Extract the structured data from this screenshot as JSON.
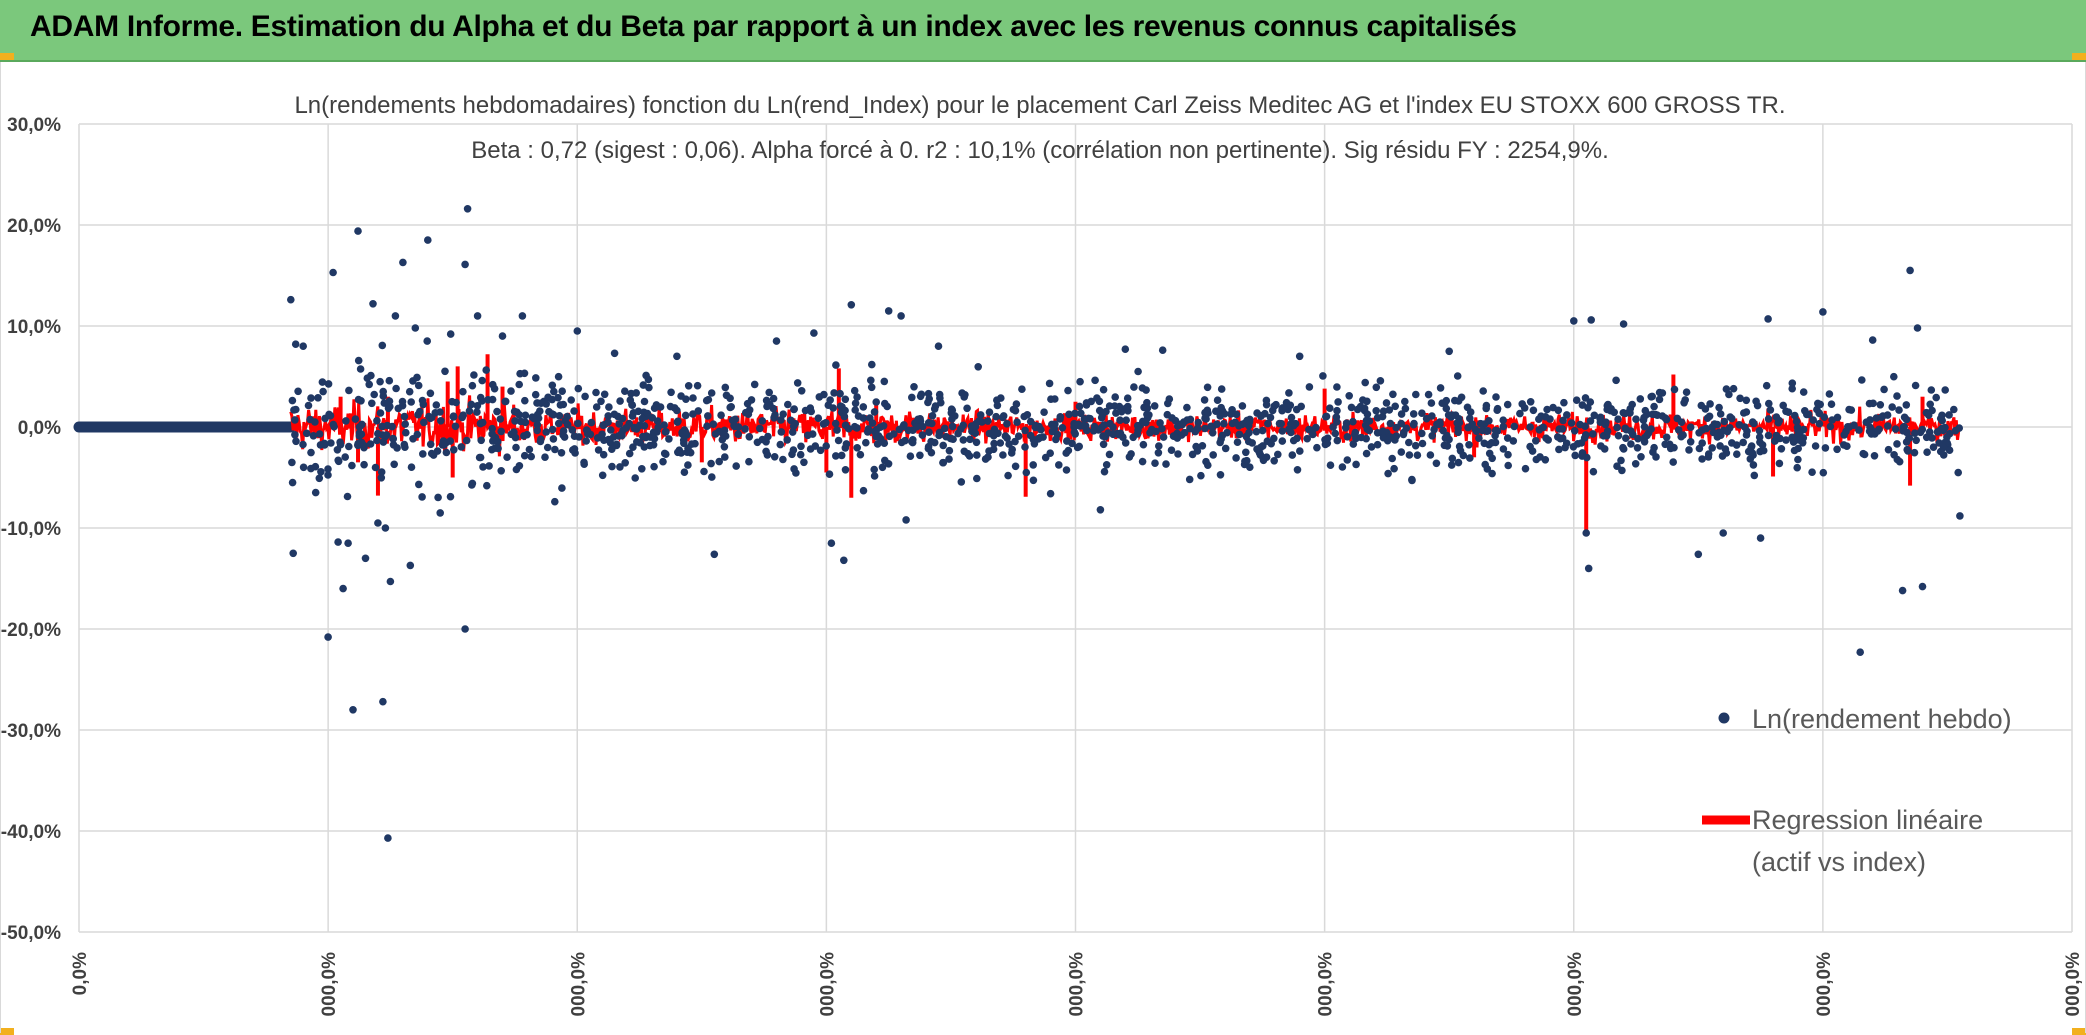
{
  "header": {
    "title": "ADAM Informe. Estimation du Alpha et du Beta par rapport à un index avec les revenus connus capitalisés"
  },
  "colors": {
    "banner": "#7bc87c",
    "points": "#203864",
    "regression": "#ff0000",
    "grid": "#d9d9d9"
  },
  "chart_data": {
    "type": "scatter",
    "title_line1": "Ln(rendements hebdomadaires) fonction du Ln(rend_Index) pour le placement Carl Zeiss Meditec AG et l'index EU STOXX 600 GROSS TR.",
    "title_line2": "Beta : 0,72 (sigest : 0,06). Alpha forcé à 0. r2 : 10,1% (corrélation non pertinente). Sig résidu FY : 2254,9%.",
    "ylim": [
      -50,
      30
    ],
    "y_ticks": [
      "30,0%",
      "20,0%",
      "10,0%",
      "0,0%",
      "-10,0%",
      "-20,0%",
      "-30,0%",
      "-40,0%",
      "-50,0%"
    ],
    "x_ticks": [
      "0,0%",
      "000,0%",
      "000,0%",
      "000,0%",
      "000,0%",
      "000,0%",
      "000,0%",
      "000,0%",
      "000,0%"
    ],
    "grid": true,
    "legend_position": "right",
    "series": [
      {
        "name": "Ln(rendement hebdo)",
        "marker": "dot"
      },
      {
        "name": "Regression linéaire (actif vs index)",
        "marker": "line"
      }
    ],
    "legend_lines": [
      "Ln(rendement hebdo)",
      "Regression linéaire",
      "(actif vs index)"
    ],
    "flat_segment": {
      "x_from": 0,
      "x_to": 0.85,
      "y": 0
    },
    "outliers": [
      [
        0.85,
        12.6
      ],
      [
        0.86,
        -12.5
      ],
      [
        0.87,
        8.2
      ],
      [
        0.9,
        8.0
      ],
      [
        0.95,
        -6.5
      ],
      [
        0.98,
        3.5
      ],
      [
        1.0,
        -20.8
      ],
      [
        1.02,
        15.3
      ],
      [
        1.04,
        -11.4
      ],
      [
        1.06,
        -16.0
      ],
      [
        1.08,
        -11.5
      ],
      [
        1.1,
        -28.0
      ],
      [
        1.12,
        19.4
      ],
      [
        1.15,
        -13.0
      ],
      [
        1.18,
        12.2
      ],
      [
        1.2,
        -9.5
      ],
      [
        1.22,
        -27.2
      ],
      [
        1.23,
        -10.0
      ],
      [
        1.24,
        -40.7
      ],
      [
        1.25,
        -15.3
      ],
      [
        1.27,
        11.0
      ],
      [
        1.3,
        16.3
      ],
      [
        1.33,
        -13.7
      ],
      [
        1.35,
        9.8
      ],
      [
        1.4,
        18.5
      ],
      [
        1.45,
        -8.5
      ],
      [
        1.55,
        -20.0
      ],
      [
        1.55,
        16.1
      ],
      [
        1.56,
        21.6
      ],
      [
        1.6,
        11.0
      ],
      [
        1.7,
        9.0
      ],
      [
        1.78,
        11.0
      ],
      [
        2.0,
        9.5
      ],
      [
        2.15,
        7.3
      ],
      [
        2.4,
        7.0
      ],
      [
        2.55,
        -12.6
      ],
      [
        2.8,
        8.5
      ],
      [
        2.95,
        9.3
      ],
      [
        3.02,
        -11.5
      ],
      [
        3.07,
        -13.2
      ],
      [
        3.1,
        12.1
      ],
      [
        3.25,
        11.5
      ],
      [
        3.3,
        11.0
      ],
      [
        3.32,
        -9.2
      ],
      [
        3.45,
        8.0
      ],
      [
        3.9,
        -6.6
      ],
      [
        4.1,
        -8.2
      ],
      [
        4.2,
        7.7
      ],
      [
        4.35,
        7.6
      ],
      [
        4.9,
        7.0
      ],
      [
        5.5,
        7.5
      ],
      [
        6.0,
        10.5
      ],
      [
        6.05,
        -10.5
      ],
      [
        6.06,
        -14.0
      ],
      [
        6.07,
        10.6
      ],
      [
        6.2,
        10.2
      ],
      [
        6.5,
        -12.6
      ],
      [
        6.6,
        -10.5
      ],
      [
        6.75,
        -11.0
      ],
      [
        6.78,
        10.7
      ],
      [
        7.0,
        11.4
      ],
      [
        7.15,
        -22.3
      ],
      [
        7.2,
        8.6
      ],
      [
        7.32,
        -16.2
      ],
      [
        7.35,
        15.5
      ],
      [
        7.38,
        9.8
      ],
      [
        7.4,
        -15.8
      ],
      [
        7.55,
        -8.8
      ]
    ],
    "regression_spikes": [
      [
        1.05,
        3.0
      ],
      [
        1.12,
        -3.5
      ],
      [
        1.2,
        -6.8
      ],
      [
        1.24,
        3.0
      ],
      [
        1.48,
        4.5
      ],
      [
        1.5,
        -5.0
      ],
      [
        1.52,
        6.0
      ],
      [
        1.64,
        7.2
      ],
      [
        1.7,
        4.0
      ],
      [
        2.5,
        -3.5
      ],
      [
        3.0,
        -4.5
      ],
      [
        3.05,
        5.8
      ],
      [
        3.1,
        -7.0
      ],
      [
        3.2,
        2.5
      ],
      [
        3.8,
        -6.9
      ],
      [
        4.0,
        2.5
      ],
      [
        5.0,
        3.8
      ],
      [
        5.6,
        -3.0
      ],
      [
        6.05,
        -10.6
      ],
      [
        6.4,
        5.2
      ],
      [
        6.8,
        -4.9
      ],
      [
        7.35,
        -5.8
      ],
      [
        7.4,
        3.0
      ]
    ]
  }
}
